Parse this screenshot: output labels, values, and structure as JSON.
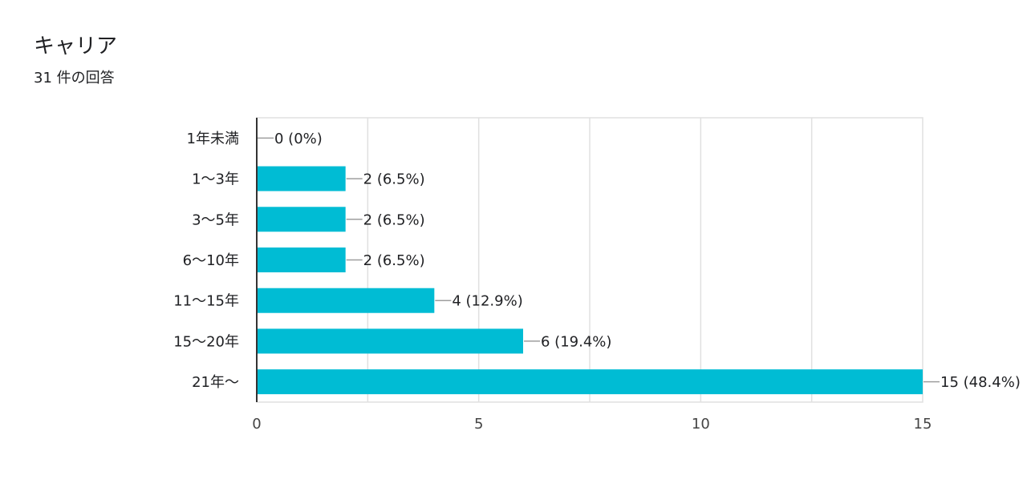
{
  "header": {
    "title": "キャリア",
    "response_count": "31 件の回答"
  },
  "chart_data": {
    "type": "bar",
    "orientation": "horizontal",
    "categories": [
      "1年未満",
      "1～3年",
      "3～5年",
      "6～10年",
      "11～15年",
      "15～20年",
      "21年～"
    ],
    "values": [
      0,
      2,
      2,
      2,
      4,
      6,
      15
    ],
    "value_labels": [
      "0 (0%)",
      "2 (6.5%)",
      "2 (6.5%)",
      "2 (6.5%)",
      "4 (12.9%)",
      "6 (19.4%)",
      "15 (48.4%)"
    ],
    "xlim": [
      0,
      15
    ],
    "x_ticks": [
      0,
      5,
      10,
      15
    ],
    "grid": true,
    "colors": {
      "bar": "#00bcd4",
      "grid": "#e0e0e0",
      "axis": "#333333",
      "leader": "#9e9e9e",
      "text": "#202124",
      "tick_text": "#444444"
    }
  }
}
